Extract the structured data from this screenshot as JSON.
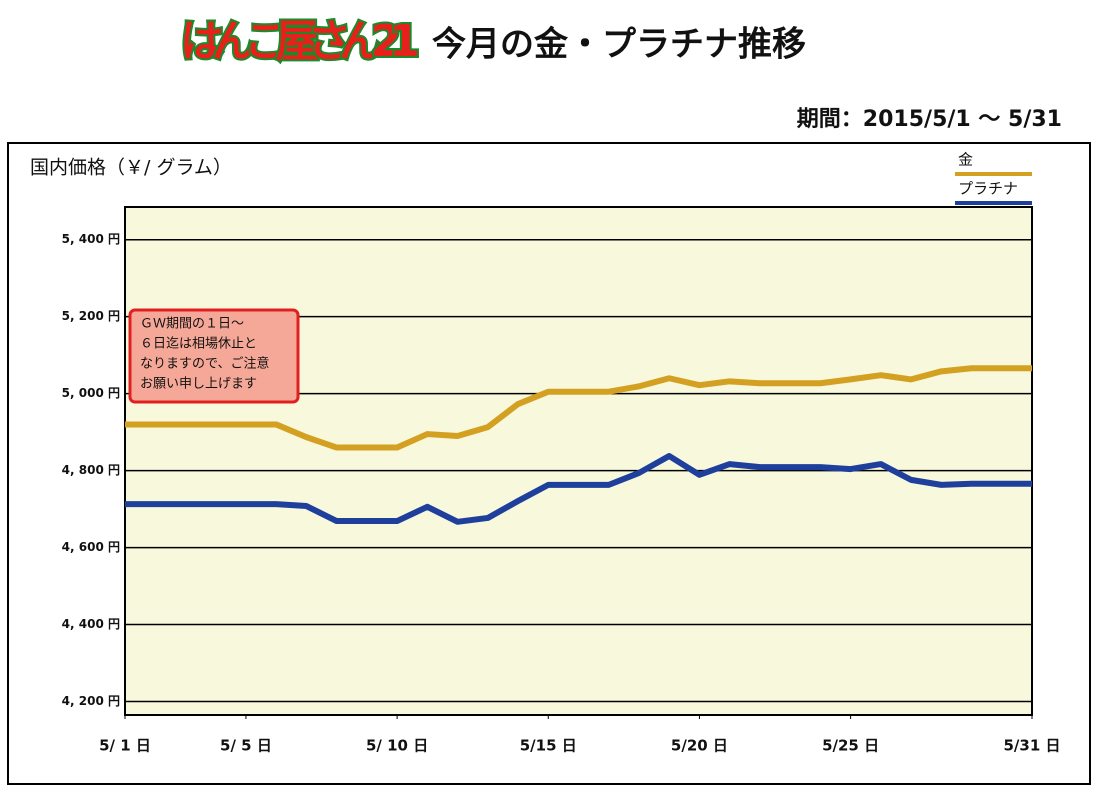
{
  "header": {
    "logo": "はんこ屋さん21",
    "title": "今月の金・プラチナ推移",
    "period": "期間：2015/5/1 〜 5/31"
  },
  "chart_data": {
    "type": "line",
    "y_label": "国内価格（￥/ グラム）",
    "x": [
      1,
      2,
      3,
      4,
      5,
      6,
      7,
      8,
      9,
      10,
      11,
      12,
      13,
      14,
      15,
      16,
      17,
      18,
      19,
      20,
      21,
      22,
      23,
      24,
      25,
      26,
      27,
      28,
      29,
      30,
      31
    ],
    "xlim": [
      1,
      31
    ],
    "xticks": [
      {
        "value": 1,
        "label": "5/ 1 日"
      },
      {
        "value": 5,
        "label": "5/ 5 日"
      },
      {
        "value": 10,
        "label": "5/ 10 日"
      },
      {
        "value": 15,
        "label": "5/15 日"
      },
      {
        "value": 20,
        "label": "5/20 日"
      },
      {
        "value": 25,
        "label": "5/25 日"
      },
      {
        "value": 31,
        "label": "5/31 日"
      }
    ],
    "ylim": [
      4165,
      5485
    ],
    "yticks": [
      {
        "value": 4200,
        "label": "4, 200 円"
      },
      {
        "value": 4400,
        "label": "4, 400 円"
      },
      {
        "value": 4600,
        "label": "4, 600 円"
      },
      {
        "value": 4800,
        "label": "4, 800 円"
      },
      {
        "value": 5000,
        "label": "5, 000 円"
      },
      {
        "value": 5200,
        "label": "5, 200 円"
      },
      {
        "value": 5400,
        "label": "5, 400 円"
      }
    ],
    "grid": true,
    "legend": "top-right",
    "series": [
      {
        "name": "金",
        "color": "#d4a021",
        "values": [
          4920,
          4920,
          4920,
          4920,
          4920,
          4920,
          4887,
          4860,
          4860,
          4860,
          4895,
          4890,
          4913,
          4973,
          5005,
          5005,
          5005,
          5019,
          5040,
          5022,
          5032,
          5027,
          5027,
          5027,
          5037,
          5048,
          5037,
          5058,
          5066,
          5066,
          5066
        ]
      },
      {
        "name": "プラチナ",
        "color": "#1f3f9c",
        "values": [
          4713,
          4713,
          4713,
          4713,
          4713,
          4713,
          4708,
          4669,
          4669,
          4669,
          4706,
          4667,
          4677,
          4721,
          4763,
          4763,
          4763,
          4794,
          4838,
          4789,
          4817,
          4809,
          4809,
          4809,
          4804,
          4817,
          4776,
          4763,
          4766,
          4766,
          4766
        ]
      }
    ],
    "annotation": [
      "ＧＷ期間の１日～",
      "６日迄は相場休止と",
      "なりますので、ご注意",
      "お願い申し上げます"
    ]
  }
}
